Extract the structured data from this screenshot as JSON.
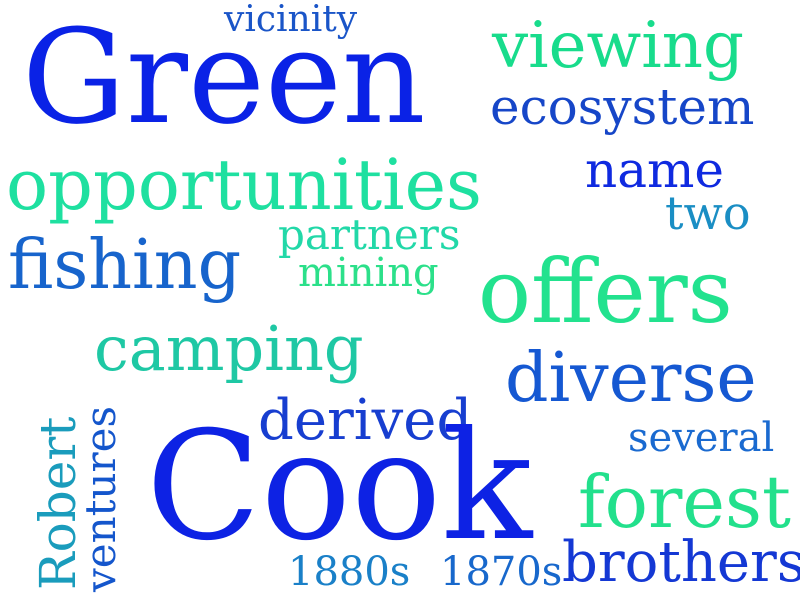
{
  "word_cloud": {
    "words": [
      {
        "text": "Green",
        "color": "#0a22e6"
      },
      {
        "text": "vicinity",
        "color": "#1a55c8"
      },
      {
        "text": "viewing",
        "color": "#18dc8c"
      },
      {
        "text": "ecosystem",
        "color": "#1646c8"
      },
      {
        "text": "opportunities",
        "color": "#1ee0a0"
      },
      {
        "text": "name",
        "color": "#0f2ae0"
      },
      {
        "text": "two",
        "color": "#1a8ec4"
      },
      {
        "text": "partners",
        "color": "#22d8a8"
      },
      {
        "text": "fishing",
        "color": "#1764cc"
      },
      {
        "text": "mining",
        "color": "#2ce08a"
      },
      {
        "text": "offers",
        "color": "#22e28e"
      },
      {
        "text": "camping",
        "color": "#1ec8a4"
      },
      {
        "text": "diverse",
        "color": "#1558d2"
      },
      {
        "text": "derived",
        "color": "#173ed0"
      },
      {
        "text": "several",
        "color": "#1a6ad0"
      },
      {
        "text": "Robert",
        "color": "#1a9cbc"
      },
      {
        "text": "ventures",
        "color": "#1456cc"
      },
      {
        "text": "Cook",
        "color": "#0d22e4"
      },
      {
        "text": "forest",
        "color": "#22e08c"
      },
      {
        "text": "1880s",
        "color": "#1a80c8"
      },
      {
        "text": "1870s",
        "color": "#1868cc"
      },
      {
        "text": "brothers",
        "color": "#1438d4"
      }
    ]
  }
}
